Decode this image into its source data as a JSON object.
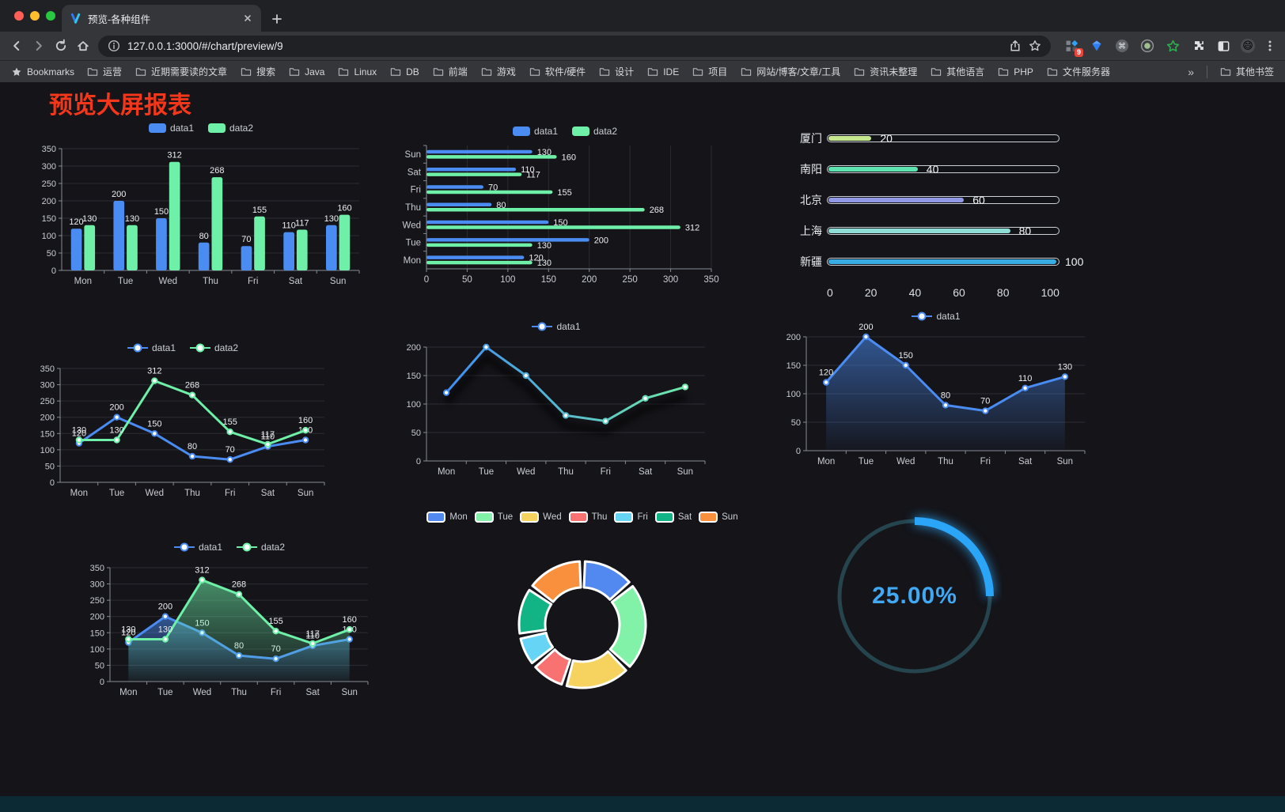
{
  "browser": {
    "tab": {
      "title": "预览-各种组件"
    },
    "url": "127.0.0.1:3000/#/chart/preview/9",
    "bookmarks_label": "Bookmarks",
    "bookmarks": [
      "运营",
      "近期需要读的文章",
      "搜索",
      "Java",
      "Linux",
      "DB",
      "前端",
      "游戏",
      "软件/硬件",
      "设计",
      "IDE",
      "项目",
      "网站/博客/文章/工具",
      "资讯未整理",
      "其他语言",
      "PHP",
      "文件服务器"
    ],
    "bookmarks_overflow": "»",
    "other_bookmarks": "其他书签",
    "extension_badge": "9"
  },
  "page": {
    "title": "预览大屏报表",
    "title_color": "#f4371b",
    "background": "#141419"
  },
  "chart_data": [
    {
      "id": "grouped-bar",
      "type": "bar",
      "variant": "vertical-grouped",
      "categories": [
        "Mon",
        "Tue",
        "Wed",
        "Thu",
        "Fri",
        "Sat",
        "Sun"
      ],
      "series": [
        {
          "name": "data1",
          "color": "#4a8cf2",
          "values": [
            120,
            200,
            150,
            80,
            70,
            110,
            130
          ]
        },
        {
          "name": "data2",
          "color": "#6ef0a8",
          "values": [
            130,
            130,
            312,
            268,
            155,
            117,
            160
          ]
        }
      ],
      "ylim": [
        0,
        350
      ],
      "yticks": [
        0,
        50,
        100,
        150,
        200,
        250,
        300,
        350
      ],
      "legend": {
        "position": "top",
        "marker": "rect"
      },
      "grid": true,
      "value_labels": true
    },
    {
      "id": "grouped-hbar",
      "type": "bar",
      "variant": "horizontal-grouped",
      "categories": [
        "Mon",
        "Tue",
        "Wed",
        "Thu",
        "Fri",
        "Sat",
        "Sun"
      ],
      "series": [
        {
          "name": "data1",
          "color": "#4a8cf2",
          "values": [
            120,
            200,
            150,
            80,
            70,
            110,
            130
          ]
        },
        {
          "name": "data2",
          "color": "#6ef0a8",
          "values": [
            130,
            130,
            312,
            268,
            155,
            117,
            160
          ]
        }
      ],
      "xlim": [
        0,
        350
      ],
      "xticks": [
        0,
        50,
        100,
        150,
        200,
        250,
        300,
        350
      ],
      "legend": {
        "position": "top",
        "marker": "rect"
      },
      "grid": true,
      "value_labels": true
    },
    {
      "id": "city-progress",
      "type": "bar",
      "variant": "progress-pills",
      "categories": [
        "厦门",
        "南阳",
        "北京",
        "上海",
        "新疆"
      ],
      "values": [
        20,
        40,
        60,
        80,
        100
      ],
      "colors": [
        "#c6e88f",
        "#5fe3ae",
        "#9199e6",
        "#8fdfd8",
        "#38ade4"
      ],
      "xlim": [
        0,
        100
      ],
      "xticks": [
        0,
        20,
        40,
        60,
        80,
        100
      ],
      "value_labels": true
    },
    {
      "id": "two-line",
      "type": "line",
      "variant": "multi-line",
      "categories": [
        "Mon",
        "Tue",
        "Wed",
        "Thu",
        "Fri",
        "Sat",
        "Sun"
      ],
      "series": [
        {
          "name": "data1",
          "color": "#4a8cf2",
          "values": [
            120,
            200,
            150,
            80,
            70,
            110,
            130
          ]
        },
        {
          "name": "data2",
          "color": "#6ef0a8",
          "values": [
            130,
            130,
            312,
            268,
            155,
            117,
            160
          ]
        }
      ],
      "ylim": [
        0,
        350
      ],
      "yticks": [
        0,
        50,
        100,
        150,
        200,
        250,
        300,
        350
      ],
      "legend": {
        "position": "top",
        "marker": "line-dot"
      },
      "grid": true,
      "value_labels": true
    },
    {
      "id": "gradient-line",
      "type": "line",
      "variant": "gradient-line",
      "categories": [
        "Mon",
        "Tue",
        "Wed",
        "Thu",
        "Fri",
        "Sat",
        "Sun"
      ],
      "series": [
        {
          "name": "data1",
          "color": "#4a8cf2",
          "gradient": [
            "#3f8df2",
            "#6fe9a9"
          ],
          "values": [
            120,
            200,
            150,
            80,
            70,
            110,
            130
          ]
        }
      ],
      "ylim": [
        0,
        200
      ],
      "yticks": [
        0,
        50,
        100,
        150,
        200
      ],
      "legend": {
        "position": "top",
        "marker": "line-dot"
      },
      "grid": true,
      "value_labels": false
    },
    {
      "id": "area-single",
      "type": "area",
      "variant": "single-area",
      "categories": [
        "Mon",
        "Tue",
        "Wed",
        "Thu",
        "Fri",
        "Sat",
        "Sun"
      ],
      "series": [
        {
          "name": "data1",
          "color": "#4a8cf2",
          "area": true,
          "values": [
            120,
            200,
            150,
            80,
            70,
            110,
            130
          ]
        }
      ],
      "ylim": [
        0,
        200
      ],
      "yticks": [
        0,
        50,
        100,
        150,
        200
      ],
      "legend": {
        "position": "top",
        "marker": "line-dot"
      },
      "grid": true,
      "value_labels": true
    },
    {
      "id": "two-area",
      "type": "area",
      "variant": "double-area",
      "categories": [
        "Mon",
        "Tue",
        "Wed",
        "Thu",
        "Fri",
        "Sat",
        "Sun"
      ],
      "series": [
        {
          "name": "data1",
          "color": "#4a8cf2",
          "area": true,
          "values": [
            120,
            200,
            150,
            80,
            70,
            110,
            130
          ]
        },
        {
          "name": "data2",
          "color": "#6ef0a8",
          "area": true,
          "values": [
            130,
            130,
            312,
            268,
            155,
            117,
            160
          ]
        }
      ],
      "ylim": [
        0,
        350
      ],
      "yticks": [
        0,
        50,
        100,
        150,
        200,
        250,
        300,
        350
      ],
      "legend": {
        "position": "top",
        "marker": "line-dot"
      },
      "grid": true,
      "value_labels": true
    },
    {
      "id": "weekday-donut",
      "type": "pie",
      "variant": "donut",
      "categories": [
        "Mon",
        "Tue",
        "Wed",
        "Thu",
        "Fri",
        "Sat",
        "Sun"
      ],
      "values": [
        120,
        200,
        150,
        80,
        70,
        110,
        130
      ],
      "colors": [
        "#5289f0",
        "#82f2a8",
        "#f5d35e",
        "#f87272",
        "#66d4f5",
        "#12b384",
        "#f9903e"
      ],
      "legend": {
        "position": "top",
        "marker": "rect-outline"
      }
    },
    {
      "id": "ring-progress",
      "type": "pie",
      "variant": "gauge",
      "value": 25,
      "label": "25.00%",
      "color": "#2ba5f7",
      "track_color": "#25444d"
    }
  ]
}
